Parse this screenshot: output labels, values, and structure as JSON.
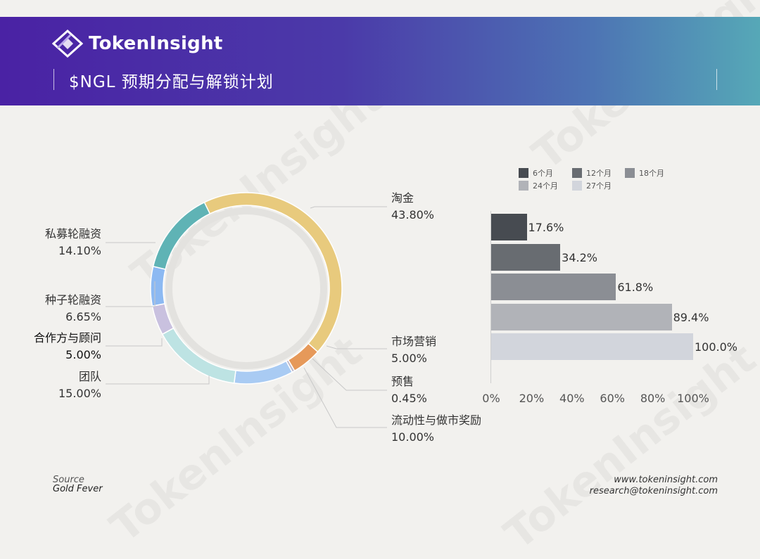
{
  "header": {
    "brand": "TokenInsight",
    "title": "$NGL 预期分配与解锁计划"
  },
  "watermark": "TokenInsight",
  "chart_data": [
    {
      "type": "pie",
      "style": "donut",
      "slices": [
        {
          "name": "淘金",
          "value_label": "43.80%",
          "value": 43.8,
          "color": "#e8ca7d"
        },
        {
          "name": "市场营销",
          "value_label": "5.00%",
          "value": 5.0,
          "color": "#e6995a"
        },
        {
          "name": "预售",
          "value_label": "0.45%",
          "value": 0.45,
          "color": "#bfb9c9"
        },
        {
          "name": "流动性与做市奖励",
          "value_label": "10.00%",
          "value": 10.0,
          "color": "#a9cbf3"
        },
        {
          "name": "团队",
          "value_label": "15.00%",
          "value": 15.0,
          "color": "#bde3e3"
        },
        {
          "name": "合作方与顾问",
          "value_label": "5.00%",
          "value": 5.0,
          "color": "#c9c1df"
        },
        {
          "name": "种子轮融资",
          "value_label": "6.65%",
          "value": 6.65,
          "color": "#8cb9f2"
        },
        {
          "name": "私募轮融资",
          "value_label": "14.10%",
          "value": 14.1,
          "color": "#5fb3b5"
        }
      ]
    },
    {
      "type": "bar",
      "orientation": "horizontal",
      "categories": [
        "6个月",
        "12个月",
        "18个月",
        "24个月",
        "27个月"
      ],
      "values": [
        17.6,
        34.2,
        61.8,
        89.4,
        100.0
      ],
      "value_labels": [
        "17.6%",
        "34.2%",
        "61.8%",
        "89.4%",
        "100.0%"
      ],
      "colors": [
        "#474b51",
        "#686c71",
        "#8b8e94",
        "#b1b3b8",
        "#d2d5dc"
      ],
      "xlim": [
        0,
        100
      ],
      "xticks": [
        "0%",
        "20%",
        "40%",
        "60%",
        "80%",
        "100%"
      ],
      "legend_position": "top"
    }
  ],
  "footer": {
    "source_label": "Source",
    "source_value": "Gold Fever",
    "website": "www.tokeninsight.com",
    "email": "research@tokeninsight.com"
  }
}
